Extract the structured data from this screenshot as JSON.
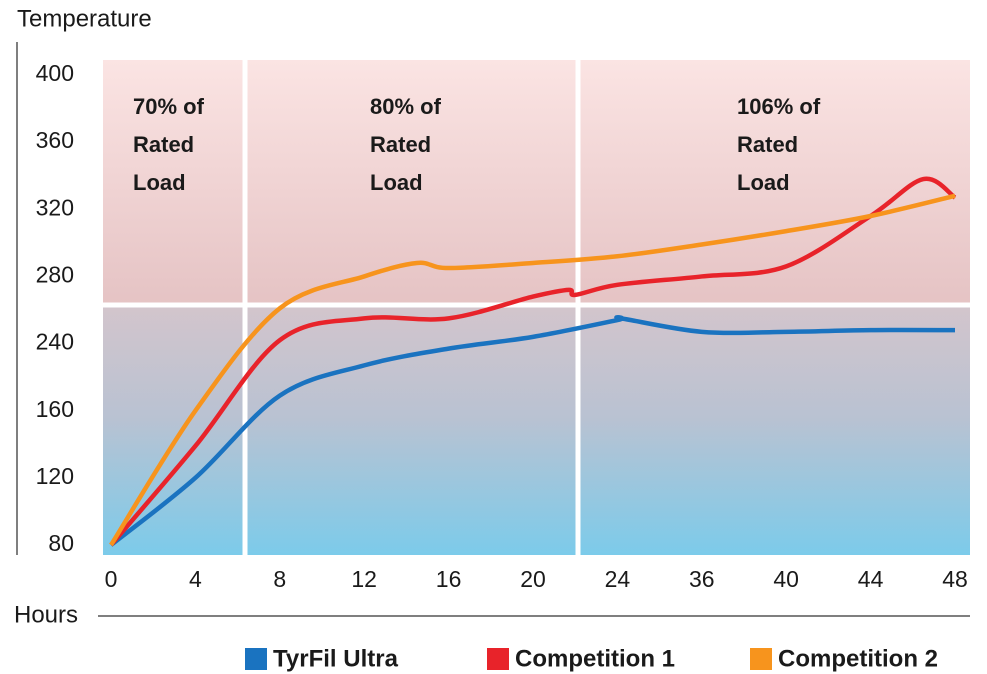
{
  "chart_data": {
    "type": "line",
    "y_label": "Temperature",
    "x_label": "Hours",
    "xticks": [
      0,
      4,
      8,
      12,
      16,
      20,
      24,
      36,
      40,
      44,
      48
    ],
    "xlim": [
      0,
      48
    ],
    "yticks": [
      80,
      120,
      160,
      240,
      280,
      320,
      360,
      400
    ],
    "ylim": [
      80,
      400
    ],
    "annotations": [
      [
        "70% of",
        "Rated",
        "Load"
      ],
      [
        "80% of",
        "Rated",
        "Load"
      ],
      [
        "106% of",
        "Rated",
        "Load"
      ]
    ],
    "series": [
      {
        "name": "TyrFil Ultra",
        "color": "#1a73c0",
        "x": [
          0,
          4,
          8,
          12,
          16,
          20,
          24,
          24.5,
          36,
          40,
          44,
          48
        ],
        "values": [
          80,
          120,
          178,
          214,
          234,
          244,
          254,
          255,
          247,
          247,
          248,
          248
        ]
      },
      {
        "name": "Competition 1",
        "color": "#e8232a",
        "x": [
          0,
          4,
          8,
          12,
          16,
          20,
          21.7,
          22,
          24,
          36,
          40,
          44,
          46.5,
          48
        ],
        "values": [
          80,
          139,
          242,
          255,
          255,
          268,
          272,
          269,
          275,
          280,
          286,
          316,
          338,
          327
        ]
      },
      {
        "name": "Competition 2",
        "color": "#f7941d",
        "x": [
          0,
          4,
          8,
          12,
          14.5,
          16,
          20,
          24,
          36,
          40,
          44,
          48
        ],
        "values": [
          80,
          160,
          261,
          280,
          288,
          285,
          288,
          292,
          299,
          307,
          316,
          328
        ]
      }
    ]
  }
}
